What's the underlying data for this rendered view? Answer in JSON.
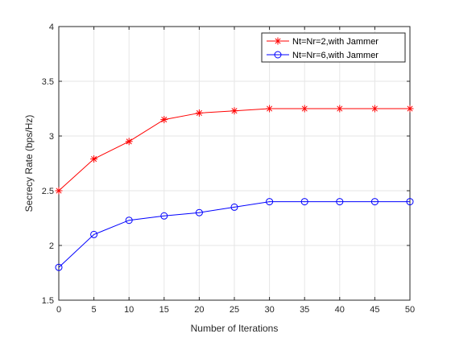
{
  "chart_data": {
    "type": "line",
    "xlabel": "Number of Iterations",
    "ylabel": "Secrecy Rate (bps/Hz)",
    "xlim": [
      0,
      50
    ],
    "ylim": [
      1.5,
      4
    ],
    "xticks": [
      "0",
      "5",
      "10",
      "15",
      "20",
      "25",
      "30",
      "35",
      "40",
      "45",
      "50"
    ],
    "yticks": [
      "1.5",
      "2",
      "2.5",
      "3",
      "3.5",
      "4"
    ],
    "grid": true,
    "legend_position": "top-right",
    "x": [
      0,
      5,
      10,
      15,
      20,
      25,
      30,
      35,
      40,
      45,
      50
    ],
    "series": [
      {
        "name": "Nt=Nr=2,with Jammer",
        "color": "#ff0000",
        "marker": "asterisk",
        "values": [
          2.5,
          2.79,
          2.95,
          3.15,
          3.21,
          3.23,
          3.25,
          3.25,
          3.25,
          3.25,
          3.25
        ]
      },
      {
        "name": "Nt=Nr=6,with Jammer",
        "color": "#0000ff",
        "marker": "circle",
        "values": [
          1.8,
          2.1,
          2.23,
          2.27,
          2.3,
          2.35,
          2.4,
          2.4,
          2.4,
          2.4,
          2.4
        ]
      }
    ]
  }
}
